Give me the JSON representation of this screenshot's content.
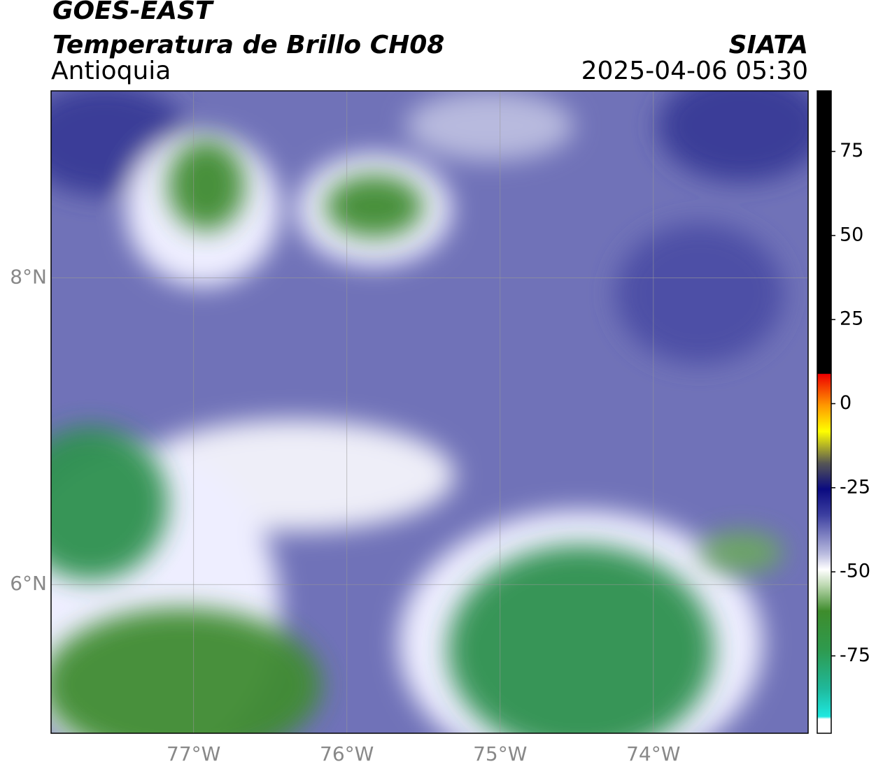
{
  "header": {
    "title": "GOES-EAST",
    "subtitle": "Temperatura de Brillo CH08",
    "region": "Antioquia",
    "source": "SIATA",
    "datetime": "2025-04-06 05:30"
  },
  "map": {
    "xlim": [
      -77.93,
      -72.99
    ],
    "ylim": [
      5.03,
      9.22
    ],
    "xticks": [
      {
        "value": -77,
        "label": "77°W"
      },
      {
        "value": -76,
        "label": "76°W"
      },
      {
        "value": -75,
        "label": "75°W"
      },
      {
        "value": -74,
        "label": "74°W"
      }
    ],
    "yticks": [
      {
        "value": 6,
        "label": "6°N"
      },
      {
        "value": 8,
        "label": "8°N"
      }
    ]
  },
  "colorbar": {
    "lim": [
      -98,
      93
    ],
    "ticks": [
      -75,
      -50,
      -25,
      0,
      25,
      50,
      75
    ]
  }
}
